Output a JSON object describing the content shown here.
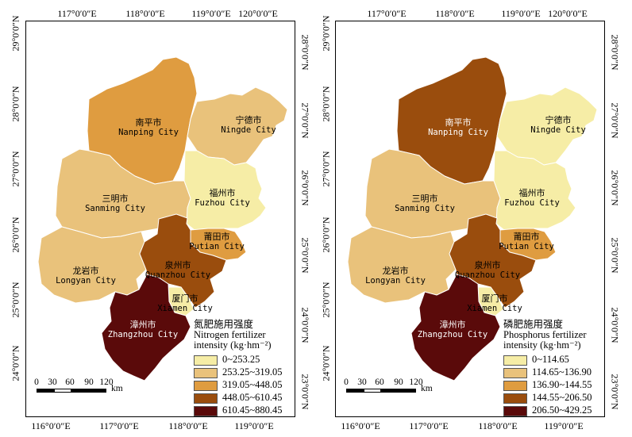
{
  "lon_labels": [
    "117°0′0″E",
    "118°0′0″E",
    "119°0′0″E",
    "120°0′0″E"
  ],
  "lon_labels_bottom": [
    "116°0′0″E",
    "117°0′0″E",
    "118°0′0″E",
    "119°0′0″E"
  ],
  "lat_labels_left": [
    "29°0′0″N",
    "28°0′0″N",
    "27°0′0″N",
    "26°0′0″N",
    "25°0′0″N",
    "24°0′0″N"
  ],
  "lat_labels_right": [
    "28°0′0″N",
    "27°0′0″N",
    "26°0′0″N",
    "25°0′0″N",
    "24°0′0″N",
    "23°0′0″N"
  ],
  "cities": {
    "nanping": {
      "zh": "南平市",
      "en": "Nanping City"
    },
    "ningde": {
      "zh": "宁德市",
      "en": "Ningde City"
    },
    "sanming": {
      "zh": "三明市",
      "en": "Sanming City"
    },
    "fuzhou": {
      "zh": "福州市",
      "en": "Fuzhou City"
    },
    "putian": {
      "zh": "莆田市",
      "en": "Putian City"
    },
    "longyan": {
      "zh": "龙岩市",
      "en": "Longyan City"
    },
    "quanzhou": {
      "zh": "泉州市",
      "en": "Quanzhou City"
    },
    "xiamen": {
      "zh": "厦门市",
      "en": "Xiamen City"
    },
    "zhangzhou": {
      "zh": "漳州市",
      "en": "Zhangzhou City"
    }
  },
  "scale_bar": {
    "ticks": [
      "0",
      "30",
      "60",
      "90",
      "120"
    ],
    "unit": "km"
  },
  "maps": [
    {
      "legend_title_zh": "氮肥施用强度",
      "legend_title_en": "Nitrogen fertilizer",
      "legend_title_unit": "intensity (kg·hm⁻²)",
      "classes": [
        {
          "label": "0~253.25",
          "color": "#f6eda6"
        },
        {
          "label": "253.25~319.05",
          "color": "#e9c27b"
        },
        {
          "label": "319.05~448.05",
          "color": "#df9c40"
        },
        {
          "label": "448.05~610.45",
          "color": "#9a4d0d"
        },
        {
          "label": "610.45~880.45",
          "color": "#5a0a0a"
        }
      ],
      "city_class": {
        "nanping": 2,
        "ningde": 1,
        "sanming": 1,
        "fuzhou": 0,
        "putian": 2,
        "longyan": 1,
        "quanzhou": 3,
        "xiamen": 0,
        "zhangzhou": 4
      }
    },
    {
      "legend_title_zh": "磷肥施用强度",
      "legend_title_en": "Phosphorus fertilizer",
      "legend_title_unit": "intensity (kg·hm⁻²)",
      "classes": [
        {
          "label": "0~114.65",
          "color": "#f6eda6"
        },
        {
          "label": "114.65~136.90",
          "color": "#e9c27b"
        },
        {
          "label": "136.90~144.55",
          "color": "#df9c40"
        },
        {
          "label": "144.55~206.50",
          "color": "#9a4d0d"
        },
        {
          "label": "206.50~429.25",
          "color": "#5a0a0a"
        }
      ],
      "city_class": {
        "nanping": 3,
        "ningde": 0,
        "sanming": 1,
        "fuzhou": 0,
        "putian": 2,
        "longyan": 1,
        "quanzhou": 3,
        "xiamen": 0,
        "zhangzhou": 4
      }
    }
  ]
}
